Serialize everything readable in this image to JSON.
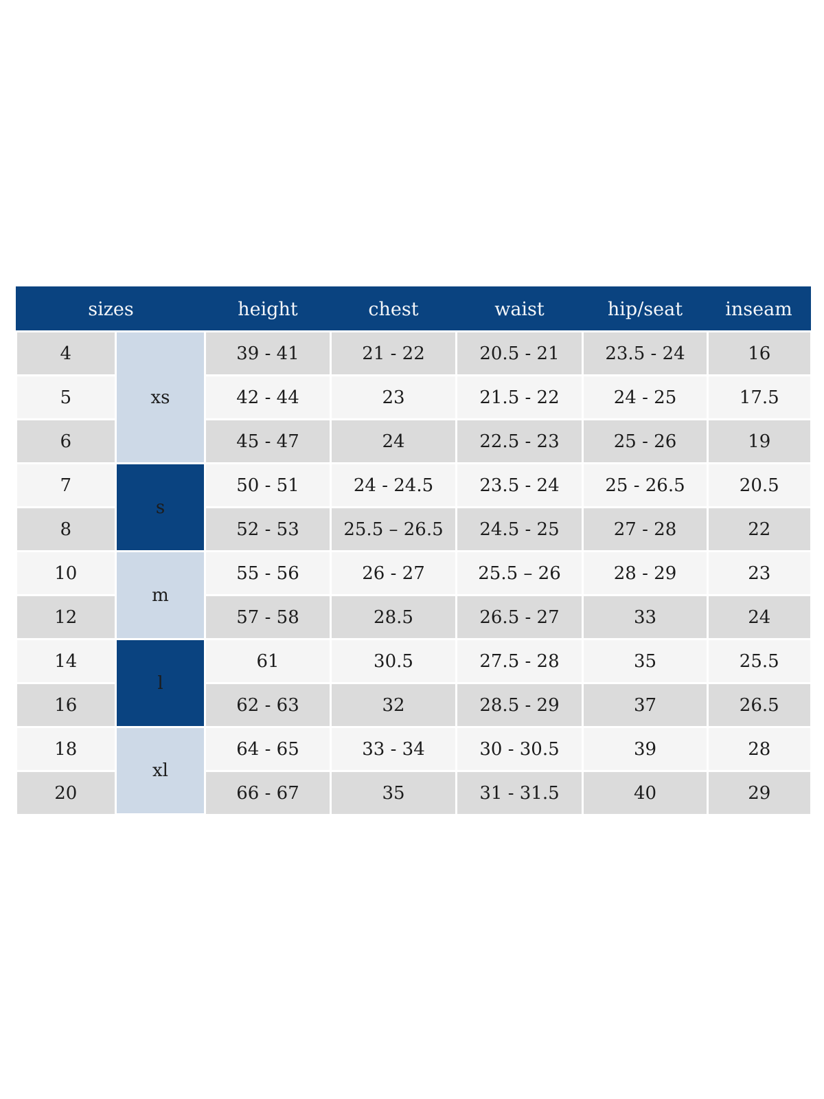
{
  "colors": {
    "header_bg": "#0a4380",
    "header_text": "#f4f6f9",
    "group_dark_bg": "#0a4380",
    "group_dark_text": "#f4f6f9",
    "group_light_bg": "#cdd9e7",
    "row_dark_bg": "#dbdbdb",
    "row_light_bg": "#f5f5f5",
    "separator": "#ffffff",
    "cell_text": "#1c1c1c"
  },
  "size_chart": {
    "columns": [
      "sizes",
      "height",
      "chest",
      "waist",
      "hip/seat",
      "inseam"
    ],
    "groups": [
      {
        "label": "xs",
        "span": 3,
        "tone": "light"
      },
      {
        "label": "s",
        "span": 2,
        "tone": "dark"
      },
      {
        "label": "m",
        "span": 2,
        "tone": "light"
      },
      {
        "label": "l",
        "span": 2,
        "tone": "dark"
      },
      {
        "label": "xl",
        "span": 2,
        "tone": "light"
      }
    ],
    "rows": [
      {
        "size": "4",
        "height": "39 - 41",
        "chest": "21 - 22",
        "waist": "20.5 - 21",
        "hip_seat": "23.5 - 24",
        "inseam": "16"
      },
      {
        "size": "5",
        "height": "42 - 44",
        "chest": "23",
        "waist": "21.5 - 22",
        "hip_seat": "24 - 25",
        "inseam": "17.5"
      },
      {
        "size": "6",
        "height": "45 - 47",
        "chest": "24",
        "waist": "22.5 - 23",
        "hip_seat": "25 - 26",
        "inseam": "19"
      },
      {
        "size": "7",
        "height": "50 - 51",
        "chest": "24 - 24.5",
        "waist": "23.5 - 24",
        "hip_seat": "25 - 26.5",
        "inseam": "20.5"
      },
      {
        "size": "8",
        "height": "52 - 53",
        "chest": "25.5 – 26.5",
        "waist": "24.5 - 25",
        "hip_seat": "27 - 28",
        "inseam": "22"
      },
      {
        "size": "10",
        "height": "55 - 56",
        "chest": "26 - 27",
        "waist": "25.5 – 26",
        "hip_seat": "28 - 29",
        "inseam": "23"
      },
      {
        "size": "12",
        "height": "57 - 58",
        "chest": "28.5",
        "waist": "26.5 - 27",
        "hip_seat": "33",
        "inseam": "24"
      },
      {
        "size": "14",
        "height": "61",
        "chest": "30.5",
        "waist": "27.5 - 28",
        "hip_seat": "35",
        "inseam": "25.5"
      },
      {
        "size": "16",
        "height": "62 - 63",
        "chest": "32",
        "waist": "28.5 - 29",
        "hip_seat": "37",
        "inseam": "26.5"
      },
      {
        "size": "18",
        "height": "64 - 65",
        "chest": "33 - 34",
        "waist": "30 - 30.5",
        "hip_seat": "39",
        "inseam": "28"
      },
      {
        "size": "20",
        "height": "66 - 67",
        "chest": "35",
        "waist": "31 - 31.5",
        "hip_seat": "40",
        "inseam": "29"
      }
    ]
  }
}
